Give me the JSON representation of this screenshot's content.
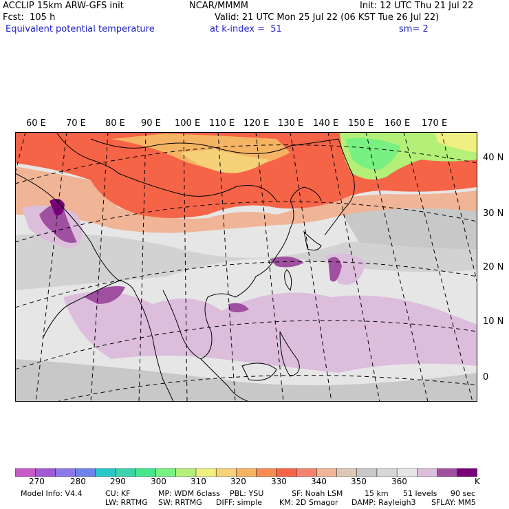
{
  "header": {
    "title": "ACCLIP 15km ARW-GFS init",
    "fcst": "Fcst:  105 h",
    "field": "Equivalent potential temperature",
    "center": "NCAR/MMMM",
    "level": "at k-index =  51",
    "init": "Init: 12 UTC Thu 21 Jul 22",
    "valid": "Valid: 21 UTC Mon 25 Jul 22 (06 KST Tue 26 Jul 22)",
    "smoothing": "sm= 2"
  },
  "longitude_labels": [
    "60 E",
    "70 E",
    "80 E",
    "90 E",
    "100 E",
    "110 E",
    "120 E",
    "130 E",
    "140 E",
    "150 E",
    "160 E",
    "170 E"
  ],
  "latitude_labels": [
    "40 N",
    "30 N",
    "20 N",
    "10 N",
    "0"
  ],
  "colorbar": {
    "colors": [
      "#c85ac8",
      "#a05ad2",
      "#8c78e6",
      "#6e82eb",
      "#28c8c8",
      "#3cd2aa",
      "#46e68c",
      "#78f082",
      "#b4f078",
      "#f0f082",
      "#f5d278",
      "#f5b464",
      "#f58c50",
      "#f56446",
      "#f5826e",
      "#f0b496",
      "#dcc8b4",
      "#c8c8c8",
      "#d7d7d7",
      "#e6e6e6",
      "#dcbedc",
      "#a050a0",
      "#780078"
    ],
    "tick_labels": [
      "270",
      "280",
      "290",
      "300",
      "310",
      "320",
      "330",
      "340",
      "350",
      "360"
    ],
    "unit": "K"
  },
  "footer": {
    "model_info": "Model Info: V4.4",
    "cu": "CU: KF",
    "mp": "MP: WDM 6class",
    "pbl": "PBL: YSU",
    "sf": "SF: Noah LSM",
    "res": "15 km",
    "levels": "51 levels",
    "dt": "90 sec",
    "lw": "LW: RRTMG",
    "sw": "SW: RRTMG",
    "diff": "DIFF: simple",
    "km": "KM: 2D Smagor",
    "damp": "DAMP: Rayleigh3",
    "sflay": "SFLAY: MM5"
  }
}
